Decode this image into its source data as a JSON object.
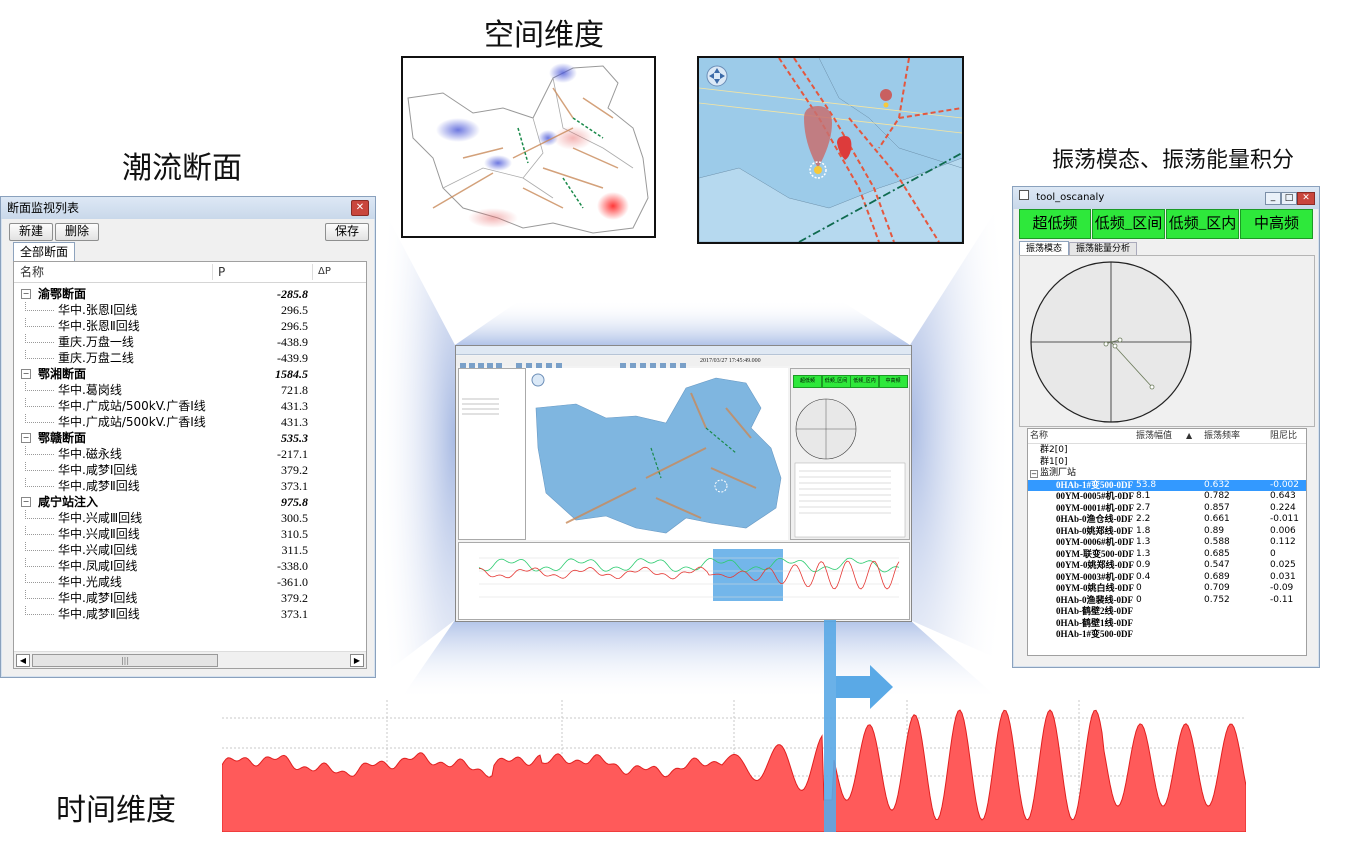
{
  "titles": {
    "spatial": "空间维度",
    "power_flow": "潮流断面",
    "oscillation": "振荡模态、振荡能量积分",
    "time": "时间维度"
  },
  "section_window": {
    "title": "断面监视列表",
    "close": "✕",
    "buttons": {
      "new": "新建",
      "delete": "删除",
      "save": "保存"
    },
    "tab": "全部断面",
    "columns": {
      "name": "名称",
      "p": "P",
      "dp": "ΔP"
    },
    "rows": [
      {
        "name": "渝鄂断面",
        "value": "-285.8",
        "group": true
      },
      {
        "name": "华中.张恩Ⅰ回线",
        "value": "296.5",
        "group": false
      },
      {
        "name": "华中.张恩Ⅱ回线",
        "value": "296.5",
        "group": false
      },
      {
        "name": "重庆.万盘一线",
        "value": "-438.9",
        "group": false
      },
      {
        "name": "重庆.万盘二线",
        "value": "-439.9",
        "group": false
      },
      {
        "name": "鄂湘断面",
        "value": "1584.5",
        "group": true
      },
      {
        "name": "华中.葛岗线",
        "value": "721.8",
        "group": false
      },
      {
        "name": "华中.广成站/500kV.广香Ⅰ线",
        "value": "431.3",
        "group": false
      },
      {
        "name": "华中.广成站/500kV.广香Ⅰ线",
        "value": "431.3",
        "group": false
      },
      {
        "name": "鄂赣断面",
        "value": "535.3",
        "group": true
      },
      {
        "name": "华中.磁永线",
        "value": "-217.1",
        "group": false
      },
      {
        "name": "华中.咸梦Ⅰ回线",
        "value": "379.2",
        "group": false
      },
      {
        "name": "华中.咸梦Ⅱ回线",
        "value": "373.1",
        "group": false
      },
      {
        "name": "咸宁站注入",
        "value": "975.8",
        "group": true
      },
      {
        "name": "华中.兴咸Ⅲ回线",
        "value": "300.5",
        "group": false
      },
      {
        "name": "华中.兴咸Ⅱ回线",
        "value": "310.5",
        "group": false
      },
      {
        "name": "华中.兴咸Ⅰ回线",
        "value": "311.5",
        "group": false
      },
      {
        "name": "华中.凤咸Ⅰ回线",
        "value": "-338.0",
        "group": false
      },
      {
        "name": "华中.光咸线",
        "value": "-361.0",
        "group": false
      },
      {
        "name": "华中.咸梦Ⅰ回线",
        "value": "379.2",
        "group": false
      },
      {
        "name": "华中.咸梦Ⅱ回线",
        "value": "373.1",
        "group": false
      }
    ],
    "scroll_thumb": "|||"
  },
  "osc_window": {
    "title": "tool_oscanaly",
    "buttons": [
      "超低频",
      "低频_区间",
      "低频_区内",
      "中高频"
    ],
    "tabs": [
      "振荡模态",
      "振荡能量分析"
    ],
    "columns": {
      "name": "名称",
      "amp": "振荡幅值",
      "freq": "振荡频率",
      "damp": "阻尼比"
    },
    "tree": [
      {
        "name": "群2[0]",
        "indent": 1,
        "amp": "",
        "freq": "",
        "damp": "",
        "bold": false
      },
      {
        "name": "群1[0]",
        "indent": 1,
        "amp": "",
        "freq": "",
        "damp": "",
        "bold": false
      },
      {
        "name": "监测厂站",
        "indent": 0,
        "amp": "",
        "freq": "",
        "damp": "",
        "bold": false
      },
      {
        "name": "0HAb-1#变500-0DF",
        "indent": 2,
        "amp": "53.8",
        "freq": "0.632",
        "damp": "-0.002",
        "bold": true,
        "selected": true
      },
      {
        "name": "00YM-0005#机-0DF",
        "indent": 2,
        "amp": "8.1",
        "freq": "0.782",
        "damp": "0.643",
        "bold": true
      },
      {
        "name": "00YM-0001#机-0DF",
        "indent": 2,
        "amp": "2.7",
        "freq": "0.857",
        "damp": "0.224",
        "bold": true
      },
      {
        "name": "0HAb-0渔仓线-0DF",
        "indent": 2,
        "amp": "2.2",
        "freq": "0.661",
        "damp": "-0.011",
        "bold": true
      },
      {
        "name": "0HAb-0姚郑线-0DF",
        "indent": 2,
        "amp": "1.8",
        "freq": "0.89",
        "damp": "0.006",
        "bold": true
      },
      {
        "name": "00YM-0006#机-0DF",
        "indent": 2,
        "amp": "1.3",
        "freq": "0.588",
        "damp": "0.112",
        "bold": true
      },
      {
        "name": "00YM-联变500-0DF",
        "indent": 2,
        "amp": "1.3",
        "freq": "0.685",
        "damp": "0",
        "bold": true
      },
      {
        "name": "00YM-0姚郑线-0DF",
        "indent": 2,
        "amp": "0.9",
        "freq": "0.547",
        "damp": "0.025",
        "bold": true
      },
      {
        "name": "00YM-0003#机-0DF",
        "indent": 2,
        "amp": "0.4",
        "freq": "0.689",
        "damp": "0.031",
        "bold": true
      },
      {
        "name": "00YM-0姚白线-0DF",
        "indent": 2,
        "amp": "0",
        "freq": "0.709",
        "damp": "-0.09",
        "bold": true
      },
      {
        "name": "0HAb-0渔裴线-0DF",
        "indent": 2,
        "amp": "0",
        "freq": "0.752",
        "damp": "-0.11",
        "bold": true
      },
      {
        "name": "0HAb-鹤壁2线-0DF",
        "indent": 2,
        "amp": "",
        "freq": "",
        "damp": "",
        "bold": true
      },
      {
        "name": "0HAb-鹤壁1线-0DF",
        "indent": 2,
        "amp": "",
        "freq": "",
        "damp": "",
        "bold": true
      },
      {
        "name": "0HAb-1#变500-0DF",
        "indent": 2,
        "amp": "",
        "freq": "",
        "damp": "",
        "bold": true
      }
    ]
  },
  "center_app": {
    "timestamp": "2017/03/27 17:45:49.000",
    "buttons": [
      "超低频",
      "低频_区间",
      "低频_区内",
      "中高频"
    ]
  },
  "colors": {
    "map_blue": "#7fb6e0",
    "signal_red": "#ff4444",
    "green_button": "#2ee83b",
    "highlight_blue": "#5aa9e6"
  }
}
